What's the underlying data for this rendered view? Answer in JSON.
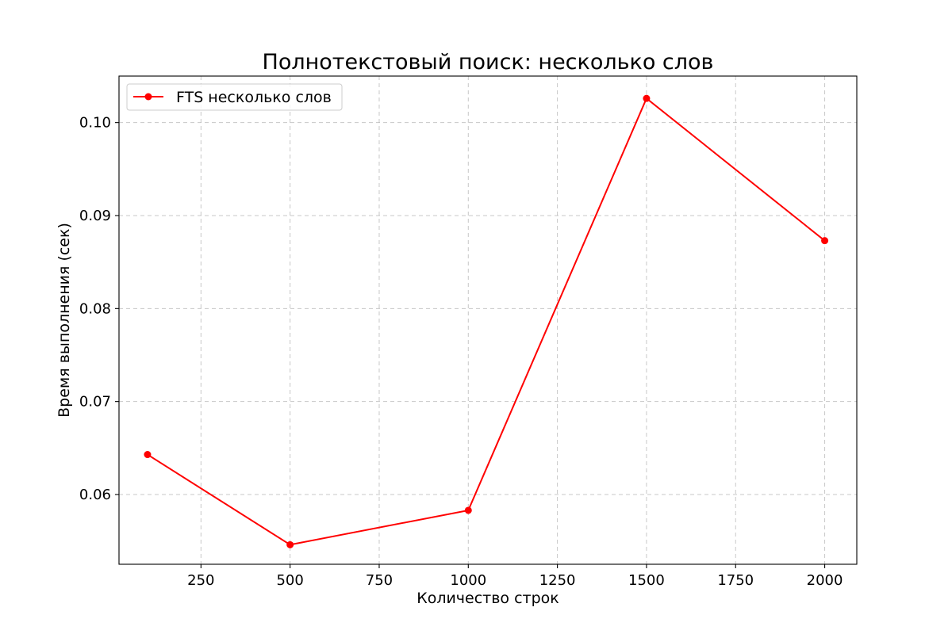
{
  "chart_data": {
    "type": "line",
    "title": "Полнотекстовый поиск: несколько слов",
    "xlabel": "Количество строк",
    "ylabel": "Время выполнения (сек)",
    "xlim": [
      20,
      2090
    ],
    "ylim": [
      0.0525,
      0.105
    ],
    "xticks": [
      250,
      500,
      750,
      1000,
      1250,
      1500,
      1750,
      2000
    ],
    "yticks": [
      0.06,
      0.07,
      0.08,
      0.09,
      0.1
    ],
    "xtick_labels": [
      "250",
      "500",
      "750",
      "1000",
      "1250",
      "1500",
      "1750",
      "2000"
    ],
    "ytick_labels": [
      "0.06",
      "0.07",
      "0.08",
      "0.09",
      "0.10"
    ],
    "grid": true,
    "legend_position": "top-left",
    "series": [
      {
        "name": "FTS несколько слов",
        "color": "#ff0000",
        "marker": "circle",
        "x": [
          100,
          500,
          1000,
          1500,
          2000
        ],
        "y": [
          0.0643,
          0.0546,
          0.0583,
          0.1026,
          0.0873
        ]
      }
    ]
  }
}
